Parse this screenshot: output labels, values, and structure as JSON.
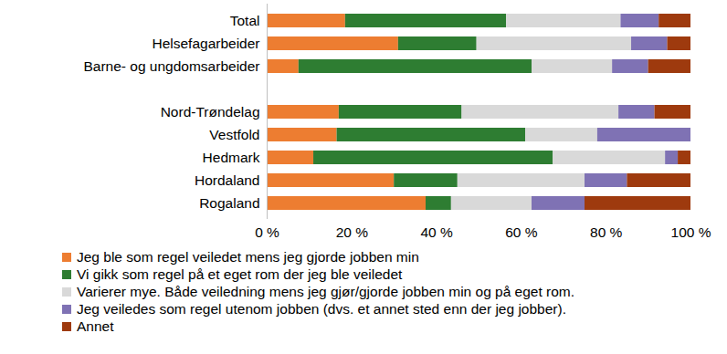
{
  "chart_data": {
    "type": "bar",
    "orientation": "horizontal",
    "stacked": true,
    "grid": false,
    "legend": "bottom",
    "categories": [
      "Total",
      "Helsefagarbeider",
      "Barne- og ungdomsarbeider",
      null,
      "Nord-Trøndelag",
      "Vestfold",
      "Hedmark",
      "Hordaland",
      "Rogaland"
    ],
    "series": [
      {
        "name": "Jeg ble som regel veiledet mens jeg gjorde jobben min",
        "color": "#ED7D31",
        "values": [
          18.5,
          31,
          7.5,
          null,
          17,
          16.5,
          11,
          30,
          37.5
        ]
      },
      {
        "name": "Vi gikk som regel på et eget rom der jeg ble veiledet",
        "color": "#2E7D32",
        "values": [
          38,
          18.5,
          55,
          null,
          29,
          44.5,
          56.5,
          15,
          6
        ]
      },
      {
        "name": "Varierer mye. Både veiledning mens jeg gjør/gjorde jobben min og på eget rom.",
        "color": "#D9D9D9",
        "values": [
          27,
          36.5,
          19,
          null,
          37,
          17,
          26.5,
          30,
          19
        ]
      },
      {
        "name": "Jeg veiledes som regel utenom jobben (dvs. et annet sted enn der jeg jobber).",
        "color": "#7F72B4",
        "values": [
          9,
          8.5,
          8.5,
          null,
          8.5,
          22,
          3,
          10,
          12.5
        ]
      },
      {
        "name": "Annet",
        "color": "#9E3A0E",
        "values": [
          7.5,
          5.5,
          10,
          null,
          8.5,
          0,
          3,
          15,
          25
        ]
      }
    ],
    "xlim": [
      0,
      100
    ],
    "xticks": [
      {
        "value": 0,
        "label": "0 %"
      },
      {
        "value": 20,
        "label": "20 %"
      },
      {
        "value": 40,
        "label": "40 %"
      },
      {
        "value": 60,
        "label": "60 %"
      },
      {
        "value": 80,
        "label": "80 %"
      },
      {
        "value": 100,
        "label": "100 %"
      }
    ]
  }
}
